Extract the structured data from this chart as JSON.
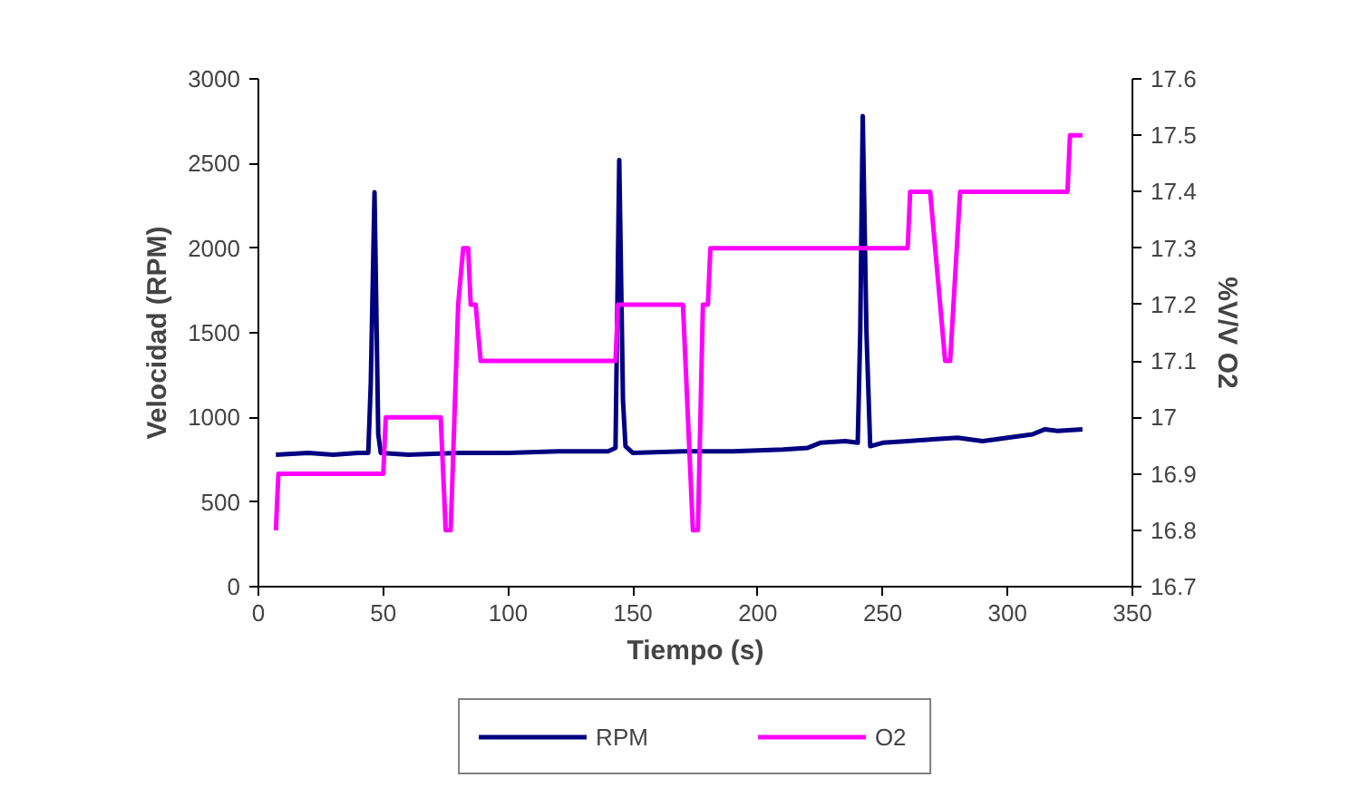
{
  "chart_data": {
    "type": "line",
    "xlabel": "Tiempo (s)",
    "ylabel": "Velocidad (RPM)",
    "y2label": "%V/V O2",
    "xlim": [
      0,
      350
    ],
    "xticks": [
      0,
      50,
      100,
      150,
      200,
      250,
      300,
      350
    ],
    "ylim": [
      0,
      3000
    ],
    "yticks": [
      0,
      500,
      1000,
      1500,
      2000,
      2500,
      3000
    ],
    "y2lim": [
      16.7,
      17.6
    ],
    "y2ticks": [
      16.7,
      16.8,
      16.9,
      17,
      17.1,
      17.2,
      17.3,
      17.4,
      17.5,
      17.6
    ],
    "grid": false,
    "legend": "bottom",
    "line_style": "solid",
    "marker": "none",
    "series": [
      {
        "name": "RPM",
        "color": "#000080",
        "x": [
          7,
          20,
          30,
          40,
          44,
          45,
          46.5,
          48,
          49,
          60,
          80,
          100,
          120,
          140,
          143,
          144.5,
          146,
          147,
          150,
          170,
          190,
          210,
          220,
          225,
          235,
          240,
          241,
          242,
          243.5,
          245,
          250,
          260,
          270,
          280,
          290,
          300,
          310,
          315,
          320,
          330
        ],
        "values": [
          780,
          790,
          780,
          790,
          790,
          1200,
          2330,
          900,
          790,
          780,
          790,
          790,
          800,
          800,
          820,
          2520,
          1100,
          830,
          790,
          800,
          800,
          810,
          820,
          850,
          860,
          850,
          1500,
          2780,
          1500,
          830,
          850,
          860,
          870,
          880,
          860,
          880,
          900,
          930,
          920,
          930
        ]
      },
      {
        "name": "O2",
        "color": "#ff00ff",
        "axis": "y2",
        "x": [
          7,
          8,
          50,
          51,
          73,
          75,
          77,
          80,
          82,
          84,
          85,
          87,
          89,
          143,
          144,
          170,
          174,
          176,
          178,
          180,
          181,
          260,
          261,
          269,
          275,
          277,
          281,
          324,
          325,
          330
        ],
        "values": [
          16.8,
          16.9,
          16.9,
          17.0,
          17.0,
          16.8,
          16.8,
          17.2,
          17.3,
          17.3,
          17.2,
          17.2,
          17.1,
          17.1,
          17.2,
          17.2,
          16.8,
          16.8,
          17.2,
          17.2,
          17.3,
          17.3,
          17.4,
          17.4,
          17.1,
          17.1,
          17.4,
          17.4,
          17.5,
          17.5
        ]
      }
    ]
  }
}
